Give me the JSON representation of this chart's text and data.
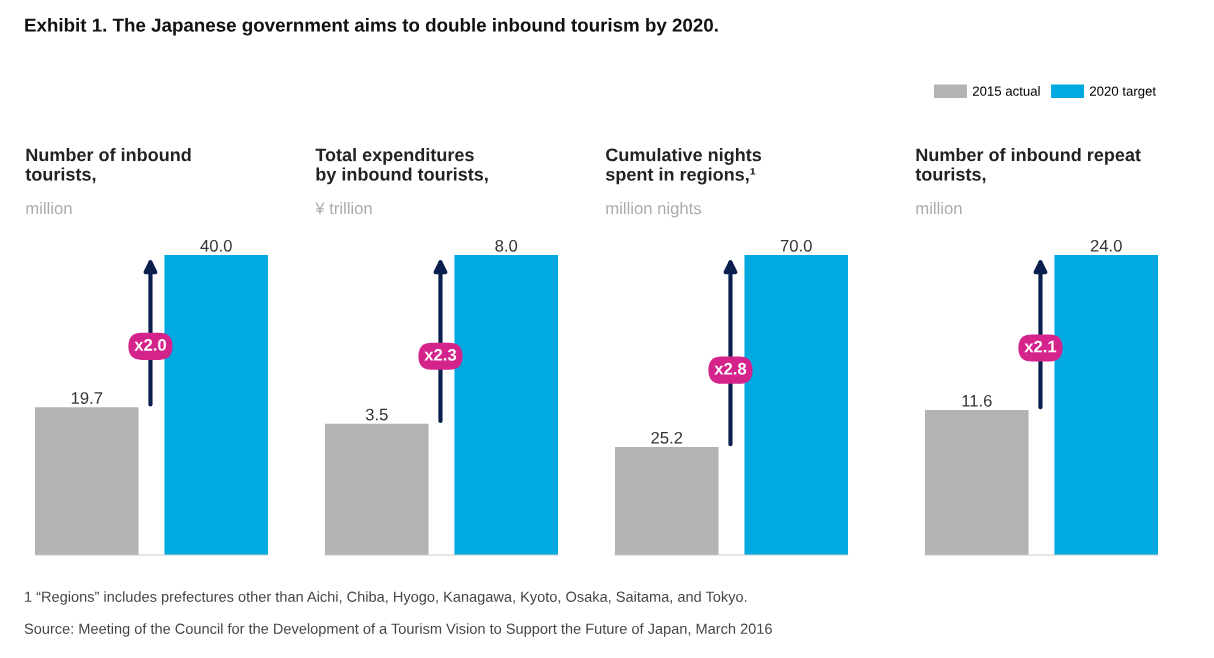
{
  "chart_data": [
    {
      "type": "bar",
      "title": "Number of inbound\ntourists,",
      "subtitle": "million",
      "categories": [
        null
      ],
      "ylim": [
        0,
        40
      ],
      "series": [
        {
          "color": "#b3b3b3",
          "values": [
            19.7
          ],
          "value_labels": [
            "19.7"
          ]
        },
        {
          "color": "#00a9e0",
          "values": [
            40.0
          ],
          "value_labels": [
            "40.0"
          ]
        }
      ],
      "annotations": [
        "Exhibit 1. The Japanese government aims to double inbound tourism by 2020.",
        "x2.0"
      ]
    },
    {
      "type": "bar",
      "title": "Total expenditures\nby inbound tourists,",
      "subtitle": "¥ trillion",
      "categories": [
        null
      ],
      "ylim": [
        0,
        8
      ],
      "series": [
        {
          "color": "#b3b3b3",
          "values": [
            3.5
          ],
          "value_labels": [
            "3.5"
          ]
        },
        {
          "color": "#00a9e0",
          "values": [
            8.0
          ],
          "value_labels": [
            "8.0"
          ]
        }
      ],
      "annotations": [
        "x2.3"
      ]
    },
    {
      "type": "bar",
      "title": "Cumulative nights\nspent in regions,¹",
      "subtitle": "million nights",
      "categories": [
        null
      ],
      "ylim": [
        0,
        70
      ],
      "series": [
        {
          "color": "#b3b3b3",
          "values": [
            25.2
          ],
          "value_labels": [
            "25.2"
          ]
        },
        {
          "color": "#00a9e0",
          "values": [
            70.0
          ],
          "value_labels": [
            "70.0"
          ]
        }
      ],
      "annotations": [
        "x2.8"
      ]
    },
    {
      "type": "bar",
      "title": "Number of inbound repeat\ntourists,",
      "subtitle": "million",
      "categories": [
        null
      ],
      "ylim": [
        0,
        24
      ],
      "legend": "top right",
      "series": [
        {
          "name": "2015 actual",
          "color": "#b3b3b3",
          "values": [
            11.6
          ],
          "value_labels": [
            "11.6"
          ]
        },
        {
          "name": "2020 target",
          "color": "#00a9e0",
          "values": [
            24.0
          ],
          "value_labels": [
            "24.0"
          ]
        }
      ],
      "annotations": [
        "x2.1",
        "1 “Regions” includes prefectures other than Aichi, Chiba, Hyogo, Kanagawa, Kyoto, Osaka, Saitama, and Tokyo.",
        "Source: Meeting of the Council for the Development of a Tourism Vision to Support the Future of Japan, March 2016"
      ]
    }
  ]
}
